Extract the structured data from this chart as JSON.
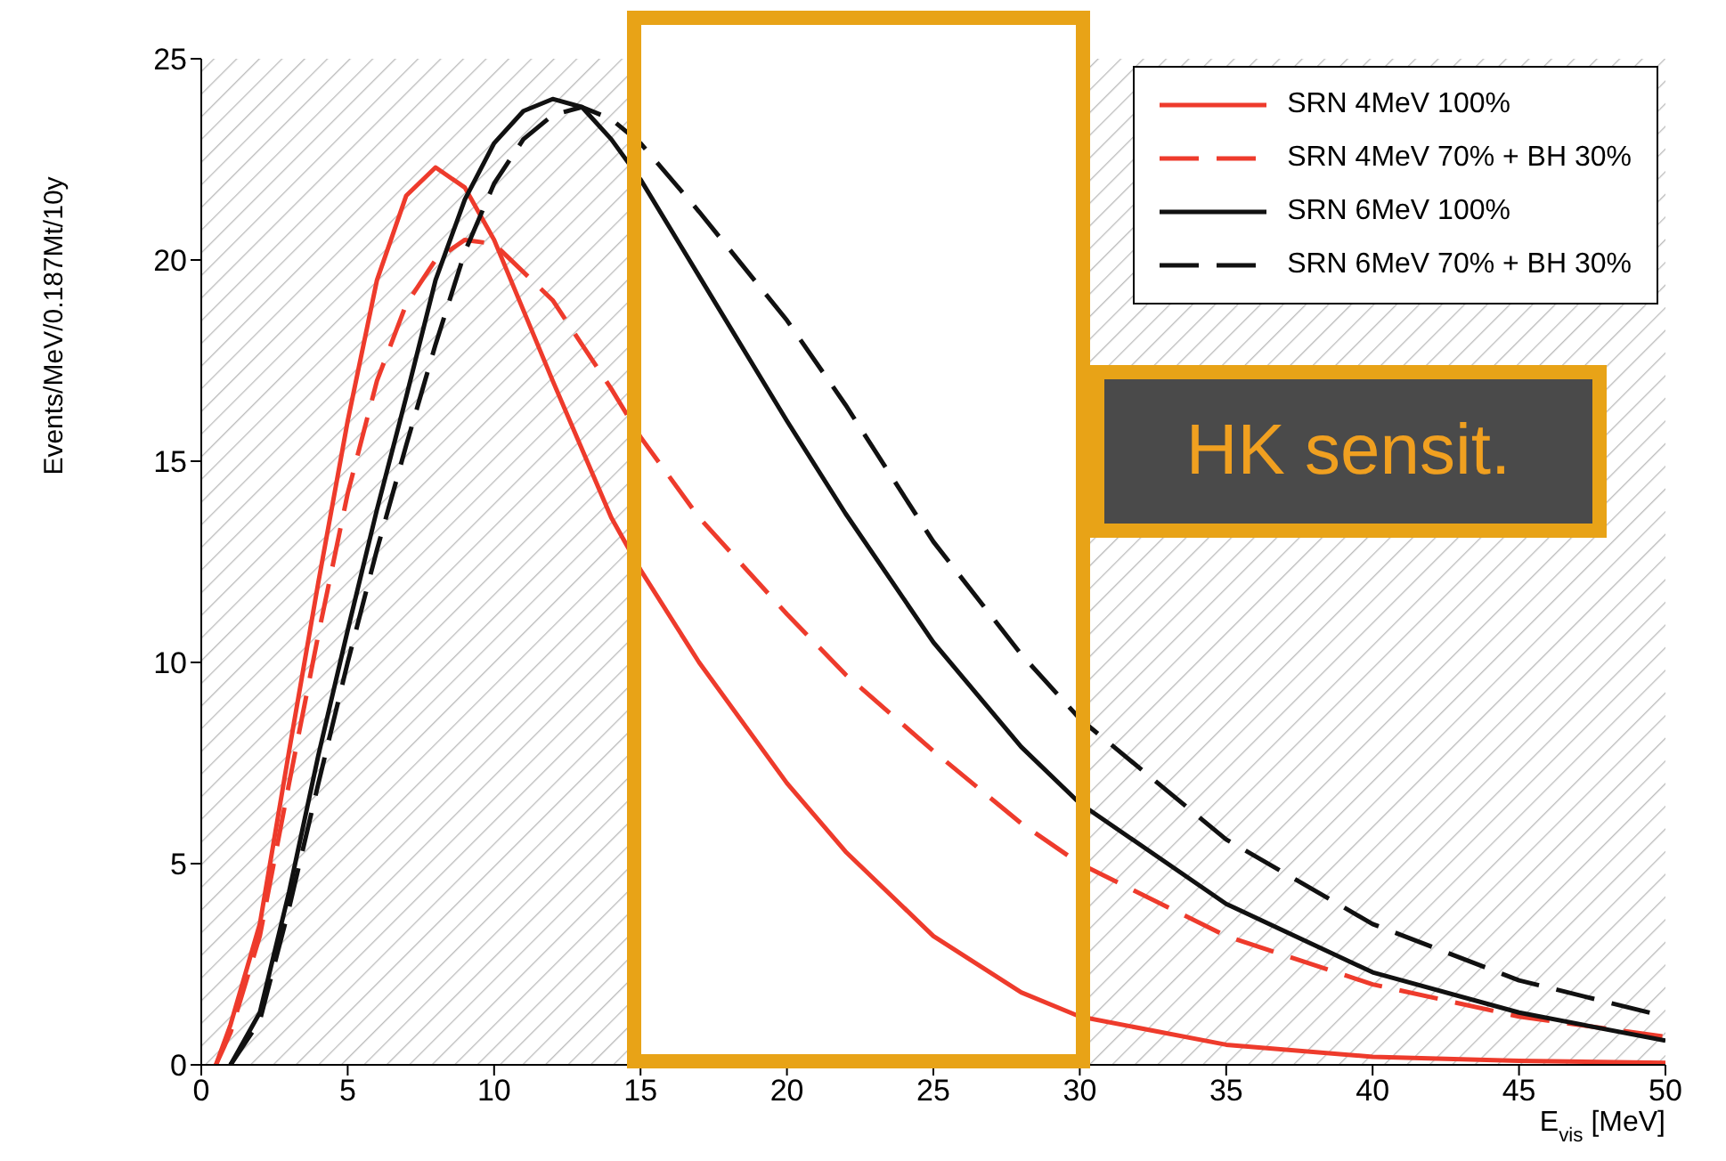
{
  "chart_data": {
    "type": "line",
    "xlabel": "E$_{vis}$ [MeV]",
    "ylabel": "Events/MeV/0.187Mt/10y",
    "xlim": [
      0,
      50
    ],
    "ylim": [
      0,
      25
    ],
    "xticks": [
      0,
      5,
      10,
      15,
      20,
      25,
      30,
      35,
      40,
      45,
      50
    ],
    "yticks": [
      0,
      5,
      10,
      15,
      20,
      25
    ],
    "grid": false,
    "legend": "top right",
    "marker": "none",
    "annotations": [
      "HK sensit."
    ],
    "bands": [
      {
        "axis": "x",
        "from": 0,
        "to": 15,
        "color": "#bbbbbb"
      },
      {
        "axis": "x",
        "from": 30,
        "to": 50,
        "color": "#bbbbbb"
      }
    ],
    "series": [
      {
        "name": "SRN 4MeV 100%",
        "color": "#ee3b2c",
        "line_style": "solid",
        "x": [
          0.5,
          1,
          2,
          3,
          4,
          5,
          6,
          7,
          8,
          9,
          10,
          12,
          14,
          15,
          17,
          20,
          22,
          25,
          28,
          30,
          35,
          40,
          45,
          50
        ],
        "values": [
          0,
          1,
          3.5,
          7.8,
          12,
          16,
          19.5,
          21.6,
          22.3,
          21.8,
          20.5,
          17,
          13.6,
          12.3,
          10,
          7,
          5.3,
          3.2,
          1.8,
          1.2,
          0.5,
          0.2,
          0.1,
          0.05
        ]
      },
      {
        "name": "SRN 4MeV 70% + BH 30%",
        "color": "#ee3b2c",
        "line_style": "dashed",
        "x": [
          0.5,
          1,
          2,
          3,
          4,
          5,
          6,
          7,
          8,
          9,
          10,
          12,
          14,
          15,
          17,
          20,
          22,
          25,
          28,
          30,
          35,
          40,
          45,
          50
        ],
        "values": [
          0,
          0.8,
          3.2,
          7,
          10.7,
          14.2,
          17,
          18.9,
          20,
          20.5,
          20.4,
          19,
          16.8,
          15.6,
          13.6,
          11.2,
          9.7,
          7.8,
          6,
          5,
          3.2,
          2,
          1.2,
          0.7
        ]
      },
      {
        "name": "SRN 6MeV 100%",
        "color": "#111111",
        "line_style": "solid",
        "x": [
          1,
          2,
          3,
          4,
          5,
          6,
          7,
          8,
          9,
          10,
          11,
          12,
          13,
          14,
          15,
          17,
          20,
          22,
          25,
          28,
          30,
          35,
          40,
          45,
          50
        ],
        "values": [
          0,
          1.3,
          4.3,
          7.7,
          10.8,
          13.8,
          16.6,
          19.5,
          21.5,
          22.9,
          23.7,
          24,
          23.8,
          23,
          22,
          19.6,
          16,
          13.7,
          10.5,
          7.9,
          6.5,
          4,
          2.3,
          1.3,
          0.6
        ]
      },
      {
        "name": "SRN 6MeV 70% + BH 30%",
        "color": "#111111",
        "line_style": "dashed",
        "x": [
          1,
          2,
          3,
          4,
          5,
          6,
          7,
          8,
          9,
          10,
          11,
          12,
          13,
          14,
          15,
          17,
          20,
          22,
          25,
          28,
          30,
          35,
          40,
          45,
          50
        ],
        "values": [
          0,
          1.1,
          3.9,
          7,
          10,
          12.8,
          15.4,
          17.9,
          20.2,
          21.9,
          23,
          23.6,
          23.8,
          23.5,
          22.9,
          21.2,
          18.5,
          16.4,
          13,
          10.2,
          8.6,
          5.6,
          3.5,
          2.1,
          1.2
        ]
      }
    ]
  }
}
